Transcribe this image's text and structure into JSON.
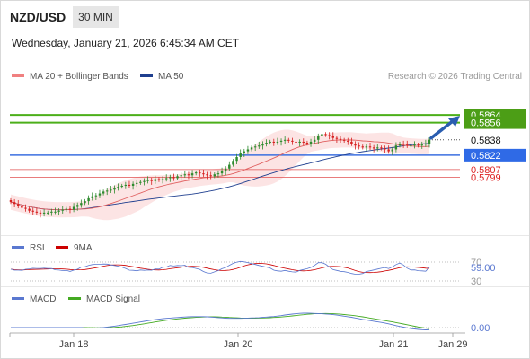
{
  "header": {
    "symbol": "NZD/USD",
    "timeframe": "30 MIN",
    "datetime": "Wednesday, January 21, 2026 6:45:34 AM CET",
    "credit": "Research © 2026 Trading Central"
  },
  "legends": {
    "price": [
      {
        "label": "MA 20 + Bollinger Bands",
        "color": "#f08080"
      },
      {
        "label": "MA 50",
        "color": "#1f3f8f"
      }
    ],
    "rsi": [
      {
        "label": "RSI",
        "color": "#5a78d0"
      },
      {
        "label": "9MA",
        "color": "#cc0000"
      }
    ],
    "macd": [
      {
        "label": "MACD",
        "color": "#5a78d0"
      },
      {
        "label": "MACD Signal",
        "color": "#44aa22"
      }
    ]
  },
  "colors": {
    "up": "#2e8b2e",
    "down": "#d62020",
    "resistance": "#4caf1a",
    "pivot": "#3b6fe0",
    "support": "#e05050",
    "arrow": "#2a5db0"
  },
  "chart_data": [
    {
      "type": "candlestick",
      "x_ticks": [
        "Jan 18",
        "Jan 20",
        "Jan 21",
        "Jan 29"
      ],
      "ylim": [
        0.5745,
        0.5895
      ],
      "levels": [
        {
          "value": 0.5864,
          "label": "0.5864",
          "kind": "resistance"
        },
        {
          "value": 0.5856,
          "label": "0.5856",
          "kind": "resistance"
        },
        {
          "value": 0.5838,
          "label": "0.5838",
          "kind": "last"
        },
        {
          "value": 0.5822,
          "label": "0.5822",
          "kind": "pivot"
        },
        {
          "value": 0.5807,
          "label": "0.5807",
          "kind": "support"
        },
        {
          "value": 0.5799,
          "label": "0.5799",
          "kind": "support"
        }
      ],
      "close": [
        0.5773,
        0.5771,
        0.5769,
        0.5767,
        0.5766,
        0.5764,
        0.5763,
        0.5762,
        0.5761,
        0.5762,
        0.5762,
        0.5763,
        0.5763,
        0.5764,
        0.5765,
        0.5766,
        0.5765,
        0.5768,
        0.577,
        0.5772,
        0.5774,
        0.5777,
        0.5779,
        0.578,
        0.5782,
        0.5784,
        0.5785,
        0.5786,
        0.5788,
        0.5789,
        0.579,
        0.5791,
        0.579,
        0.5792,
        0.5793,
        0.5794,
        0.5795,
        0.5796,
        0.5795,
        0.5797,
        0.5796,
        0.5797,
        0.5798,
        0.5799,
        0.5798,
        0.58,
        0.5801,
        0.5802,
        0.5801,
        0.5803,
        0.5804,
        0.5803,
        0.5802,
        0.5801,
        0.58,
        0.5802,
        0.5803,
        0.5805,
        0.5808,
        0.5812,
        0.5816,
        0.582,
        0.5824,
        0.5826,
        0.5828,
        0.583,
        0.5831,
        0.5832,
        0.5834,
        0.5835,
        0.5836,
        0.5835,
        0.5836,
        0.5837,
        0.5838,
        0.5837,
        0.5836,
        0.5835,
        0.5836,
        0.5835,
        0.5834,
        0.5836,
        0.5838,
        0.5842,
        0.5844,
        0.5843,
        0.5842,
        0.584,
        0.5839,
        0.5838,
        0.5837,
        0.5836,
        0.5834,
        0.5832,
        0.5831,
        0.583,
        0.5831,
        0.583,
        0.5829,
        0.583,
        0.5829,
        0.5828,
        0.5826,
        0.5828,
        0.5832,
        0.5834,
        0.5833,
        0.5832,
        0.5832,
        0.5833,
        0.5832,
        0.5833,
        0.5834,
        0.5838
      ]
    },
    {
      "type": "line",
      "name": "RSI",
      "ticks": [
        "70",
        "59.00",
        "30"
      ],
      "current": 59.0
    },
    {
      "type": "line",
      "name": "MACD",
      "ticks": [
        "0.00"
      ],
      "current": 0.0
    }
  ]
}
